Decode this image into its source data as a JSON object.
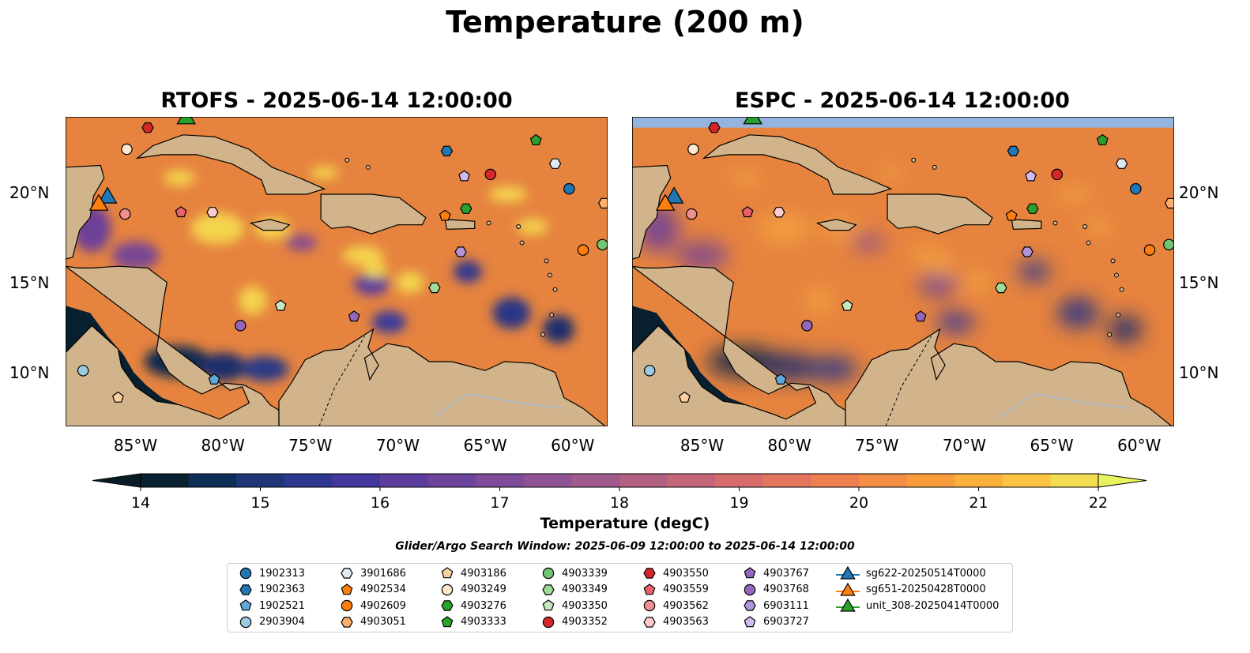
{
  "suptitle": "Temperature (200 m)",
  "panels": [
    {
      "title": "RTOFS - 2025-06-14 12:00:00"
    },
    {
      "title": "ESPC - 2025-06-14 12:00:00"
    }
  ],
  "map_extent": {
    "lon": [
      -89,
      -58
    ],
    "lat": [
      7,
      24.2
    ]
  },
  "x_ticks": [
    {
      "lon": -85,
      "label": "85°W"
    },
    {
      "lon": -80,
      "label": "80°W"
    },
    {
      "lon": -75,
      "label": "75°W"
    },
    {
      "lon": -70,
      "label": "70°W"
    },
    {
      "lon": -65,
      "label": "65°W"
    },
    {
      "lon": -60,
      "label": "60°W"
    }
  ],
  "y_ticks": [
    {
      "lat": 20,
      "label": "20°N"
    },
    {
      "lat": 15,
      "label": "15°N"
    },
    {
      "lat": 10,
      "label": "10°N"
    }
  ],
  "colorbar": {
    "ticks": [
      "14",
      "15",
      "16",
      "17",
      "18",
      "19",
      "20",
      "21",
      "22"
    ],
    "min": 14,
    "max": 22,
    "label": "Temperature (degC)",
    "colors": [
      "#08202f",
      "#0f2e57",
      "#1f3777",
      "#2e3890",
      "#44379d",
      "#5b3d9e",
      "#6d449c",
      "#7e4c98",
      "#8f5393",
      "#a05a8c",
      "#b35f83",
      "#c56678",
      "#d66d6c",
      "#e3755f",
      "#ed7f51",
      "#f48d45",
      "#f99d3c",
      "#fcb03c",
      "#fbc443",
      "#f2dc52"
    ],
    "under_color": "#071c27",
    "over_color": "#e8f45e"
  },
  "search_window": "Glider/Argo Search Window: 2025-06-09 12:00:00 to 2025-06-14 12:00:00",
  "colors": {
    "land": "#d2b48c",
    "ocean_fill": "#95b4dd",
    "coast": "#000000",
    "river": "#9bb8dd"
  },
  "floats": [
    {
      "id": "1902313",
      "shape": "circle",
      "color": "#1f77b4",
      "lon": -60.2,
      "lat": 20.2
    },
    {
      "id": "1902363",
      "shape": "hexagon",
      "color": "#1f77b4",
      "lon": -67.2,
      "lat": 22.3
    },
    {
      "id": "1902521",
      "shape": "pentagon",
      "color": "#5fa8dc",
      "lon": -80.5,
      "lat": 9.6
    },
    {
      "id": "2903904",
      "shape": "circle",
      "color": "#9ecae1",
      "lon": -88.0,
      "lat": 10.1
    },
    {
      "id": "3901686",
      "shape": "hexagon",
      "color": "#deebf7",
      "lon": -61.0,
      "lat": 21.6
    },
    {
      "id": "4902534",
      "shape": "pentagon",
      "color": "#ff7f0e",
      "lon": -67.3,
      "lat": 18.7
    },
    {
      "id": "4902609",
      "shape": "circle",
      "color": "#ff7f0e",
      "lon": -59.4,
      "lat": 16.8
    },
    {
      "id": "4903051",
      "shape": "hexagon",
      "color": "#fdae6b",
      "lon": -58.2,
      "lat": 19.4
    },
    {
      "id": "4903186",
      "shape": "pentagon",
      "color": "#fdd0a2",
      "lon": -86.0,
      "lat": 8.6
    },
    {
      "id": "4903249",
      "shape": "circle",
      "color": "#ffe6cc",
      "lon": -85.5,
      "lat": 22.4
    },
    {
      "id": "4903276",
      "shape": "hexagon",
      "color": "#2ca02c",
      "lon": -66.1,
      "lat": 19.1
    },
    {
      "id": "4903333",
      "shape": "pentagon",
      "color": "#2ca02c",
      "lon": -62.1,
      "lat": 22.9
    },
    {
      "id": "4903339",
      "shape": "circle",
      "color": "#74c476",
      "lon": -58.3,
      "lat": 17.1
    },
    {
      "id": "4903349",
      "shape": "hexagon",
      "color": "#a1d99b",
      "lon": -67.9,
      "lat": 14.7
    },
    {
      "id": "4903350",
      "shape": "pentagon",
      "color": "#c7e9c0",
      "lon": -76.7,
      "lat": 13.7
    },
    {
      "id": "4903352",
      "shape": "circle",
      "color": "#d62728",
      "lon": -64.7,
      "lat": 21.0
    },
    {
      "id": "4903550",
      "shape": "hexagon",
      "color": "#d62728",
      "lon": -84.3,
      "lat": 23.6
    },
    {
      "id": "4903559",
      "shape": "pentagon",
      "color": "#e8626a",
      "lon": -82.4,
      "lat": 18.9
    },
    {
      "id": "4903562",
      "shape": "circle",
      "color": "#f28e8e",
      "lon": -85.6,
      "lat": 18.8
    },
    {
      "id": "4903563",
      "shape": "hexagon",
      "color": "#ffcccc",
      "lon": -80.6,
      "lat": 18.9
    },
    {
      "id": "4903767",
      "shape": "pentagon",
      "color": "#9467bd",
      "lon": -72.5,
      "lat": 13.1
    },
    {
      "id": "4903768",
      "shape": "circle",
      "color": "#9467bd",
      "lon": -79.0,
      "lat": 12.6
    },
    {
      "id": "6903111",
      "shape": "hexagon",
      "color": "#b294dc",
      "lon": -66.4,
      "lat": 16.7
    },
    {
      "id": "6903727",
      "shape": "pentagon",
      "color": "#d2b9f0",
      "lon": -66.2,
      "lat": 20.9
    }
  ],
  "gliders": [
    {
      "id": "sg622-20250514T0000",
      "color": "#1f77b4",
      "lon": -86.6,
      "lat": 19.7
    },
    {
      "id": "sg651-20250428T0000",
      "color": "#ff7f0e",
      "lon": -87.1,
      "lat": 19.3
    },
    {
      "id": "unit_308-20250414T0000",
      "color": "#2ca02c",
      "lon": -82.1,
      "lat": 24.1
    }
  ]
}
